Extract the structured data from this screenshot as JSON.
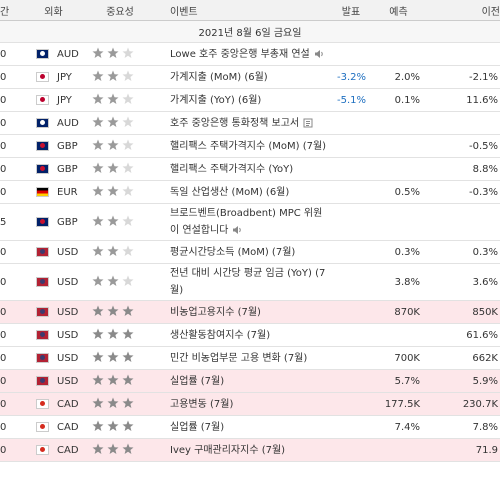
{
  "header": {
    "columns": [
      "간",
      "외화",
      "중요성",
      "이벤트",
      "발표",
      "예측",
      "이전"
    ]
  },
  "date": "2021년 8월 6일 금요일",
  "rows": [
    {
      "time": "0",
      "currency": "AUD",
      "flag_colors": [
        "#012169",
        "#ffffff"
      ],
      "importance": 2,
      "event": "Lowe 호주 중앙은행 부총재 연설",
      "icon": "speaker",
      "actual": "",
      "forecast": "",
      "previous": "",
      "highlight": false
    },
    {
      "time": "0",
      "currency": "JPY",
      "flag_colors": [
        "#ffffff",
        "#bc002d"
      ],
      "importance": 2,
      "event": "가계지출 (MoM) (6월)",
      "icon": "",
      "actual": "-3.2%",
      "forecast": "2.0%",
      "previous": "-2.1%",
      "highlight": false
    },
    {
      "time": "0",
      "currency": "JPY",
      "flag_colors": [
        "#ffffff",
        "#bc002d"
      ],
      "importance": 2,
      "event": "가계지출 (YoY) (6월)",
      "icon": "",
      "actual": "-5.1%",
      "forecast": "0.1%",
      "previous": "11.6%",
      "highlight": false
    },
    {
      "time": "0",
      "currency": "AUD",
      "flag_colors": [
        "#012169",
        "#ffffff"
      ],
      "importance": 2,
      "event": "호주 중앙은행 통화정책 보고서",
      "icon": "document",
      "actual": "",
      "forecast": "",
      "previous": "",
      "highlight": false
    },
    {
      "time": "0",
      "currency": "GBP",
      "flag_colors": [
        "#012169",
        "#c8102e"
      ],
      "importance": 2,
      "event": "핼리팩스 주택가격지수 (MoM) (7월)",
      "icon": "",
      "actual": "",
      "forecast": "",
      "previous": "-0.5%",
      "highlight": false
    },
    {
      "time": "0",
      "currency": "GBP",
      "flag_colors": [
        "#012169",
        "#c8102e"
      ],
      "importance": 2,
      "event": "핼리팩스 주택가격지수 (YoY)",
      "icon": "",
      "actual": "",
      "forecast": "",
      "previous": "8.8%",
      "highlight": false
    },
    {
      "time": "0",
      "currency": "EUR",
      "flag_colors": [
        "#000000",
        "#dd0000",
        "#ffce00"
      ],
      "importance": 2,
      "event": "독일 산업생산 (MoM) (6월)",
      "icon": "",
      "actual": "",
      "forecast": "0.5%",
      "previous": "-0.3%",
      "highlight": false
    },
    {
      "time": "5",
      "currency": "GBP",
      "flag_colors": [
        "#012169",
        "#c8102e"
      ],
      "importance": 2,
      "event": "브로드벤트(Broadbent) MPC 위원이 연설합니다",
      "icon": "speaker",
      "actual": "",
      "forecast": "",
      "previous": "",
      "highlight": false
    },
    {
      "time": "0",
      "currency": "USD",
      "flag_colors": [
        "#b22234",
        "#3c3b6e"
      ],
      "importance": 2,
      "event": "평균시간당소득 (MoM) (7월)",
      "icon": "",
      "actual": "",
      "forecast": "0.3%",
      "previous": "0.3%",
      "highlight": false
    },
    {
      "time": "0",
      "currency": "USD",
      "flag_colors": [
        "#b22234",
        "#3c3b6e"
      ],
      "importance": 2,
      "event": "전년 대비 시간당 평균 임금 (YoY) (7월)",
      "icon": "",
      "actual": "",
      "forecast": "3.8%",
      "previous": "3.6%",
      "highlight": false
    },
    {
      "time": "0",
      "currency": "USD",
      "flag_colors": [
        "#b22234",
        "#3c3b6e"
      ],
      "importance": 3,
      "event": "비농업고용지수 (7월)",
      "icon": "",
      "actual": "",
      "forecast": "870K",
      "previous": "850K",
      "highlight": true
    },
    {
      "time": "0",
      "currency": "USD",
      "flag_colors": [
        "#b22234",
        "#3c3b6e"
      ],
      "importance": 3,
      "event": "생산활동참여지수 (7월)",
      "icon": "",
      "actual": "",
      "forecast": "",
      "previous": "61.6%",
      "highlight": false
    },
    {
      "time": "0",
      "currency": "USD",
      "flag_colors": [
        "#b22234",
        "#3c3b6e"
      ],
      "importance": 3,
      "event": "민간 비농업부문 고용 변화 (7월)",
      "icon": "",
      "actual": "",
      "forecast": "700K",
      "previous": "662K",
      "highlight": false
    },
    {
      "time": "0",
      "currency": "USD",
      "flag_colors": [
        "#b22234",
        "#3c3b6e"
      ],
      "importance": 3,
      "event": "실업률 (7월)",
      "icon": "",
      "actual": "",
      "forecast": "5.7%",
      "previous": "5.9%",
      "highlight": true
    },
    {
      "time": "0",
      "currency": "CAD",
      "flag_colors": [
        "#ffffff",
        "#d52b1e"
      ],
      "importance": 3,
      "event": "고용변동 (7월)",
      "icon": "",
      "actual": "",
      "forecast": "177.5K",
      "previous": "230.7K",
      "highlight": true
    },
    {
      "time": "0",
      "currency": "CAD",
      "flag_colors": [
        "#ffffff",
        "#d52b1e"
      ],
      "importance": 3,
      "event": "실업률 (7월)",
      "icon": "",
      "actual": "",
      "forecast": "7.4%",
      "previous": "7.8%",
      "highlight": false
    },
    {
      "time": "0",
      "currency": "CAD",
      "flag_colors": [
        "#ffffff",
        "#d52b1e"
      ],
      "importance": 3,
      "event": "Ivey 구매관리자지수 (7월)",
      "icon": "",
      "actual": "",
      "forecast": "",
      "previous": "71.9",
      "highlight": true
    }
  ]
}
